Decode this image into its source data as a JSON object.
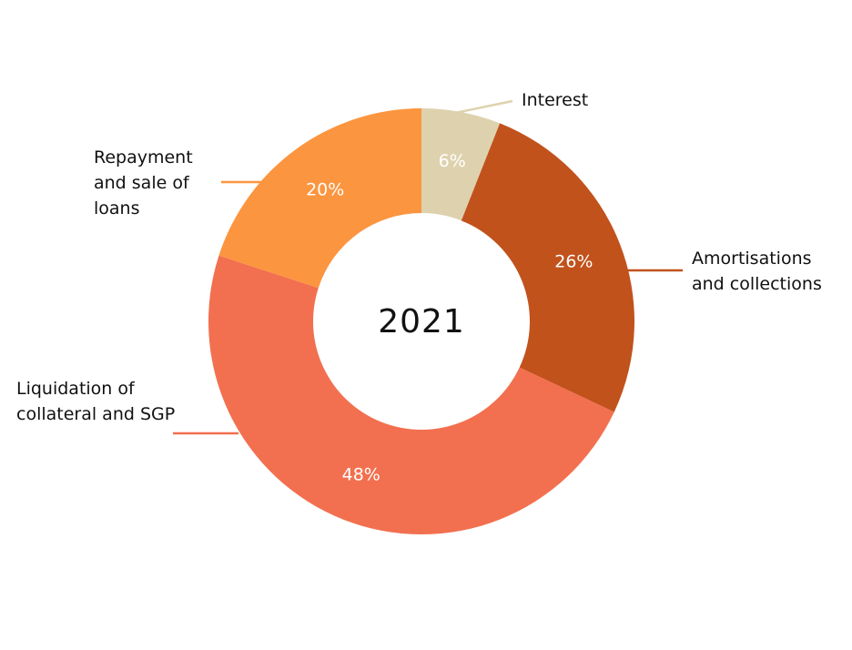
{
  "chart_data": {
    "type": "pie",
    "donut": true,
    "center_text": "2021",
    "start_angle_deg": 0,
    "direction": "clockwise",
    "slices": [
      {
        "label_lines": [
          "Interest"
        ],
        "value": 6,
        "value_label": "6%",
        "color": "#DED2AE"
      },
      {
        "label_lines": [
          "Amortisations",
          "and collections"
        ],
        "value": 26,
        "value_label": "26%",
        "color": "#C1521C"
      },
      {
        "label_lines": [
          "Liquidation of",
          "collateral and SGP"
        ],
        "value": 48,
        "value_label": "48%",
        "color": "#F2704F"
      },
      {
        "label_lines": [
          "Repayment",
          "and sale of",
          "loans"
        ],
        "value": 20,
        "value_label": "20%",
        "color": "#FC953F"
      }
    ]
  }
}
